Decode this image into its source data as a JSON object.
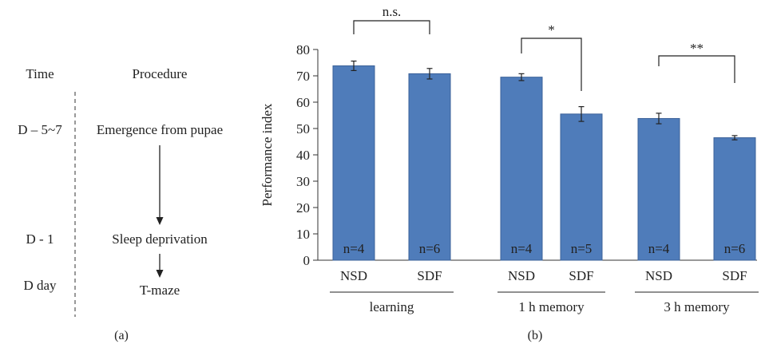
{
  "panel_a": {
    "col_time": "Time",
    "col_procedure": "Procedure",
    "rows": [
      {
        "time": "D – 5~7",
        "procedure": "Emergence from pupae"
      },
      {
        "time": "D - 1",
        "procedure": "Sleep deprivation"
      },
      {
        "time": "D day",
        "procedure": "T-maze"
      }
    ],
    "label": "(a)"
  },
  "panel_b": {
    "label": "(b)"
  },
  "colors": {
    "bar": "#4f7cba",
    "bar_edge": "#3b6299",
    "text": "#222222"
  },
  "chart_data": {
    "type": "bar",
    "ylabel": "Performance index",
    "ylim": [
      0,
      80
    ],
    "yticks": [
      0,
      10,
      20,
      30,
      40,
      50,
      60,
      70,
      80
    ],
    "grid": false,
    "bars": [
      {
        "group": "learning",
        "label": "NSD",
        "value": 73.8,
        "error": 1.8,
        "n": "n=4"
      },
      {
        "group": "learning",
        "label": "SDF",
        "value": 70.8,
        "error": 2.0,
        "n": "n=6"
      },
      {
        "group": "1 h memory",
        "label": "NSD",
        "value": 69.5,
        "error": 1.3,
        "n": "n=4"
      },
      {
        "group": "1 h memory",
        "label": "SDF",
        "value": 55.5,
        "error": 2.8,
        "n": "n=5"
      },
      {
        "group": "3 h memory",
        "label": "NSD",
        "value": 53.8,
        "error": 2.0,
        "n": "n=4"
      },
      {
        "group": "3 h memory",
        "label": "SDF",
        "value": 46.5,
        "error": 0.8,
        "n": "n=6"
      }
    ],
    "groups": [
      "learning",
      "1 h memory",
      "3 h memory"
    ],
    "significance": [
      {
        "from": 0,
        "to": 1,
        "text": "n.s."
      },
      {
        "from": 2,
        "to": 3,
        "text": "*"
      },
      {
        "from": 4,
        "to": 5,
        "text": "**"
      }
    ]
  }
}
